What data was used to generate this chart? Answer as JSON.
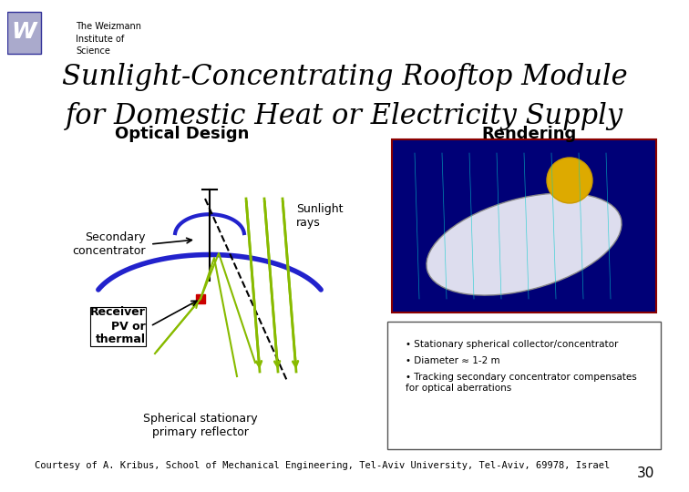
{
  "title_line1": "Sunlight-Concentrating Rooftop Module",
  "title_line2": "for Domestic Heat or Electricity Supply",
  "institute_line1": "The Weizmann",
  "institute_line2": "Institute of",
  "institute_line3": "Science",
  "section_optical": "Optical Design",
  "section_rendering": "Rendering",
  "label_secondary": "Secondary\nconcentrator",
  "label_receiver": "Receiver\nPV or\nthermal",
  "label_sunlight": "Sunlight\nrays",
  "label_spherical": "Spherical stationary\nprimary reflector",
  "bullet1": "Stationary spherical collector/concentrator",
  "bullet2": "Diameter ≈ 1-2 m",
  "bullet3": "Tracking secondary concentrator compensates\nfor optical aberrations",
  "courtesy": "Courtesy of A. Kribus, School of Mechanical Engineering, Tel-Aviv University, Tel-Aviv, 69978, Israel",
  "page_number": "30",
  "bg_color": "#ffffff",
  "title_color": "#000000",
  "blue_arc_color": "#2222cc",
  "green_ray_color": "#88bb00",
  "black_line_color": "#000000",
  "red_dot_color": "#cc0000",
  "section_label_color": "#000000"
}
